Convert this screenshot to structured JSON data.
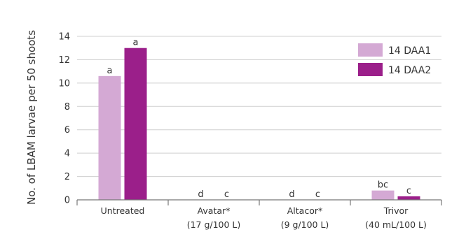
{
  "chart_data": {
    "type": "bar",
    "ylabel": "No. of LBAM larvae per 50 shoots",
    "xlabel": "",
    "ylim": [
      0,
      14
    ],
    "yticks": [
      0,
      2,
      4,
      6,
      8,
      10,
      12,
      14
    ],
    "grid": true,
    "legend_position": "top-right",
    "categories": [
      {
        "line1": "Untreated",
        "line2": ""
      },
      {
        "line1": "Avatar*",
        "line2": "(17 g/100 L)"
      },
      {
        "line1": "Altacor*",
        "line2": "(9 g/100 L)"
      },
      {
        "line1": "Trivor",
        "line2": "(40 mL/100 L)"
      }
    ],
    "series": [
      {
        "name": "14 DAA1",
        "color": "#d4a9d4",
        "values": [
          10.6,
          0,
          0,
          0.8
        ],
        "labels": [
          "a",
          "d",
          "d",
          "bc"
        ]
      },
      {
        "name": "14 DAA2",
        "color": "#9b1f8a",
        "values": [
          13.0,
          0,
          0,
          0.3
        ],
        "labels": [
          "a",
          "c",
          "c",
          "c"
        ]
      }
    ]
  }
}
